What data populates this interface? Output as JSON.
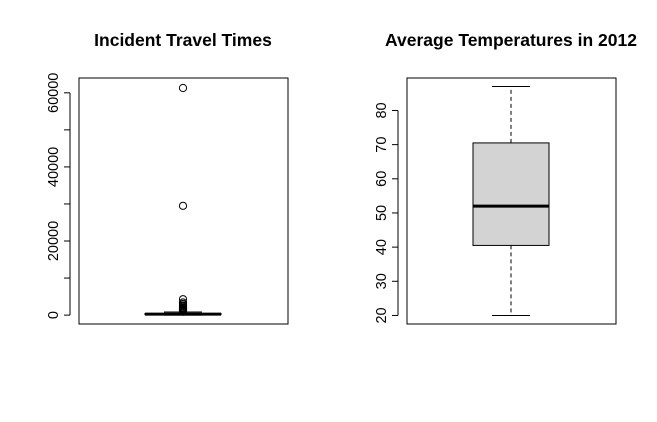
{
  "chart_data": [
    {
      "type": "boxplot",
      "title": "Incident Travel Times",
      "xlabel": "",
      "ylabel": "",
      "ylim": [
        -2400,
        64000
      ],
      "yticks": [
        0,
        10000,
        20000,
        30000,
        40000,
        50000,
        60000
      ],
      "ytick_labels": [
        "0",
        "",
        "20000",
        "",
        "40000",
        "",
        "60000"
      ],
      "box": {
        "whisker_low": 0,
        "q1": 120,
        "median": 250,
        "q3": 420,
        "whisker_high": 850,
        "box_fill": "#d3d3d3"
      },
      "outliers": [
        61300,
        29500,
        4300,
        3400,
        3000,
        2600,
        2300,
        2000,
        1800,
        1600,
        1400,
        1200,
        1050,
        950
      ]
    },
    {
      "type": "boxplot",
      "title": "Average Temperatures in 2012",
      "xlabel": "",
      "ylabel": "",
      "ylim": [
        17.5,
        89.5
      ],
      "yticks": [
        20,
        30,
        40,
        50,
        60,
        70,
        80
      ],
      "ytick_labels": [
        "20",
        "30",
        "40",
        "50",
        "60",
        "70",
        "80"
      ],
      "box": {
        "whisker_low": 20,
        "q1": 40.5,
        "median": 52,
        "q3": 70.5,
        "whisker_high": 87,
        "box_fill": "#d3d3d3"
      },
      "outliers": []
    }
  ]
}
